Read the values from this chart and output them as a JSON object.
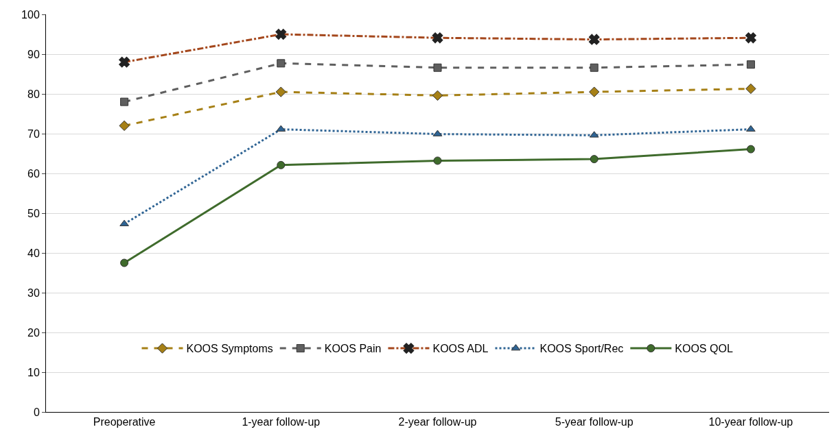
{
  "chart_data": {
    "type": "line",
    "categories": [
      "Preoperative",
      "1-year follow-up",
      "2-year follow-up",
      "5-year follow-up",
      "10-year follow-up"
    ],
    "ylim": [
      0,
      100
    ],
    "yticks": [
      0,
      10,
      20,
      30,
      40,
      50,
      60,
      70,
      80,
      90,
      100
    ],
    "grid": "y",
    "legend": "bottom",
    "series": [
      {
        "name": "KOOS Symptoms",
        "color": "#a68016",
        "marker": "diamond",
        "line_style": "dashed",
        "values": [
          72.0,
          80.5,
          79.6,
          80.5,
          81.3
        ]
      },
      {
        "name": "KOOS Pain",
        "color": "#5f5f5f",
        "marker": "square",
        "line_style": "dashed",
        "values": [
          78.0,
          87.7,
          86.6,
          86.6,
          87.4
        ]
      },
      {
        "name": "KOOS ADL",
        "color": "#a4471c",
        "marker": "cross",
        "line_style": "dashdot",
        "values": [
          88.0,
          95.0,
          94.1,
          93.7,
          94.1
        ]
      },
      {
        "name": "KOOS Sport/Rec",
        "color": "#2f6494",
        "marker": "triangle",
        "line_style": "dotted",
        "values": [
          47.3,
          71.1,
          69.9,
          69.6,
          71.1
        ]
      },
      {
        "name": "KOOS QOL",
        "color": "#3f6b2c",
        "marker": "circle",
        "line_style": "solid",
        "values": [
          37.5,
          62.1,
          63.2,
          63.6,
          66.1
        ]
      }
    ]
  }
}
